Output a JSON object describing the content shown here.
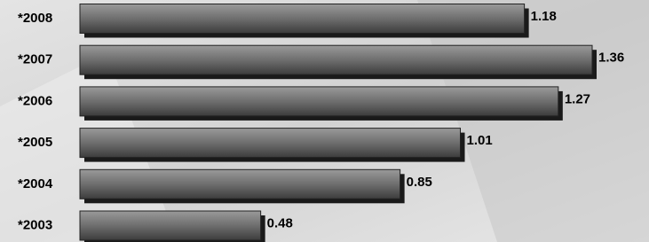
{
  "chart_data": {
    "type": "bar",
    "orientation": "horizontal",
    "categories": [
      "*2008",
      "*2007",
      "*2006",
      "*2005",
      "*2004",
      "*2003"
    ],
    "values": [
      1.18,
      1.36,
      1.27,
      1.01,
      0.85,
      0.48
    ],
    "color": "#6e6e6e"
  }
}
